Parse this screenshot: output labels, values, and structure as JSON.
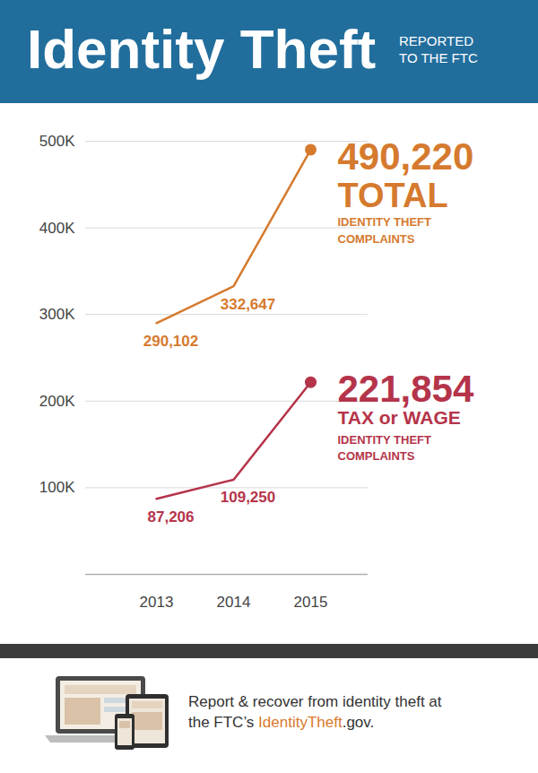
{
  "chart_data": {
    "type": "line",
    "title": "Identity Theft",
    "subtitle": "REPORTED TO THE FTC",
    "categories": [
      "2013",
      "2014",
      "2015"
    ],
    "series": [
      {
        "name": "TOTAL",
        "annotation": "IDENTITY THEFT COMPLAINTS",
        "color": "#d57a2e",
        "marker": "end",
        "values": [
          290102,
          332647,
          490220
        ],
        "value_labels": [
          "290,102",
          "332,647",
          "490,220"
        ]
      },
      {
        "name": "TAX or WAGE",
        "annotation": "IDENTITY THEFT COMPLAINTS",
        "color": "#b5344a",
        "marker": "end",
        "values": [
          87206,
          109250,
          221854
        ],
        "value_labels": [
          "87,206",
          "109,250",
          "221,854"
        ]
      }
    ],
    "ylim": [
      0,
      500000
    ],
    "yticks": [
      {
        "value": 100000,
        "label": "100K"
      },
      {
        "value": 200000,
        "label": "200K"
      },
      {
        "value": 300000,
        "label": "300K"
      },
      {
        "value": 400000,
        "label": "400K"
      },
      {
        "value": 500000,
        "label": "500K"
      }
    ],
    "grid": true,
    "data_labels": true,
    "caption": [
      "Report & recover from identity theft at",
      "the FTC’s IdentityTheft.gov."
    ],
    "caption_highlight": "IdentityTheft"
  }
}
